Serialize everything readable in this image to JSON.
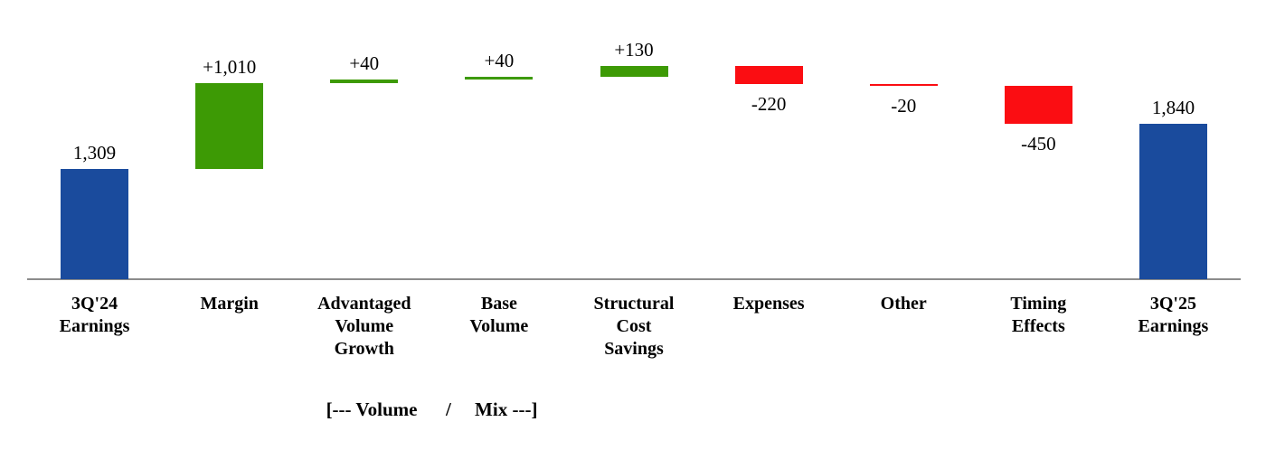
{
  "chart_data": {
    "type": "bar",
    "subtype": "waterfall",
    "categories": [
      "3Q'24 Earnings",
      "Margin",
      "Advantaged Volume Growth",
      "Base Volume",
      "Structural Cost Savings",
      "Expenses",
      "Other",
      "Timing Effects",
      "3Q'25 Earnings"
    ],
    "category_display": [
      "3Q'24\nEarnings",
      "Margin",
      "Advantaged\nVolume\nGrowth",
      "Base\nVolume",
      "Structural\nCost\nSavings",
      "Expenses",
      "Other",
      "Timing\nEffects",
      "3Q'25\nEarnings"
    ],
    "values": [
      1309,
      1010,
      40,
      40,
      130,
      -220,
      -20,
      -450,
      1840
    ],
    "kinds": [
      "total",
      "delta",
      "delta",
      "delta",
      "delta",
      "delta",
      "delta",
      "delta",
      "total"
    ],
    "data_labels": [
      "1,309",
      "+1,010",
      "+40",
      "+40",
      "+130",
      "-220",
      "-20",
      "-450",
      "1,840"
    ],
    "start_value": 1309,
    "end_value": 1840,
    "running_peak": 2529,
    "ylim": [
      0,
      2529
    ],
    "grid": "off",
    "legend": "none",
    "annotation": "[--- Volume      /     Mix ---]",
    "colors": {
      "total": "#1a4b9d",
      "increase": "#3d9a05",
      "decrease": "#fb0d12",
      "axis_line": "#8c8c8c",
      "label_text": "#000000"
    }
  }
}
